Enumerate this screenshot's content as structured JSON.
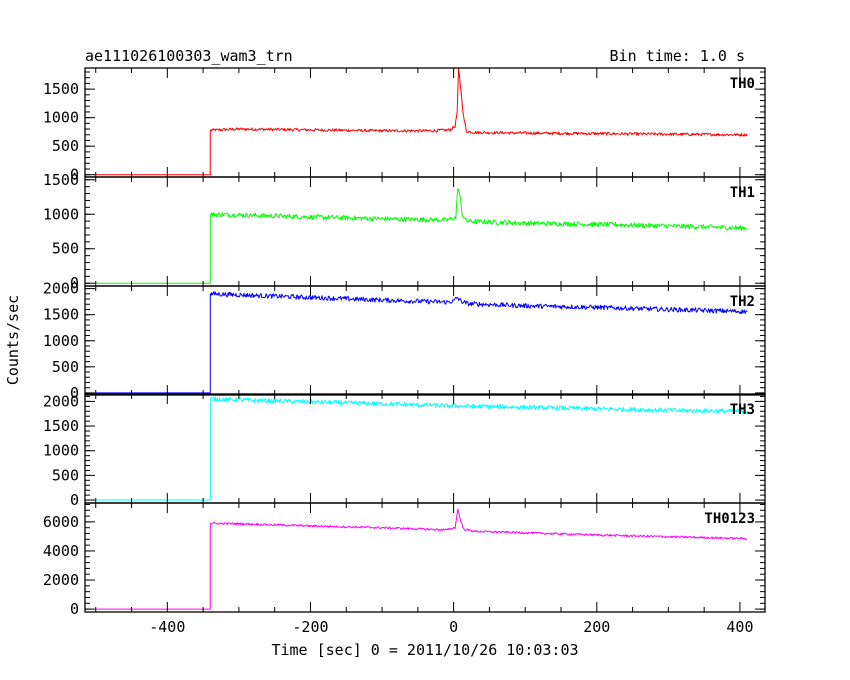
{
  "header": {
    "source": "ae111026100303_wam3_trn",
    "bin_time": "Bin time: 1.0 s"
  },
  "chart_data": {
    "type": "line",
    "title": "ae111026100303_wam3_trn",
    "bin_time": "Bin time: 1.0 s",
    "xlabel": "Time [sec] 0 = 2011/10/26 10:03:03",
    "ylabel": "Counts/sec",
    "xlim": [
      -515,
      435
    ],
    "x_ticks": [
      -400,
      -200,
      0,
      200,
      400
    ],
    "grid": false,
    "panels": [
      {
        "name": "TH0",
        "color": "#ff0000",
        "ylim": [
          -40,
          1870
        ],
        "y_ticks": [
          0,
          500,
          1000,
          1500
        ],
        "noise": 25,
        "points": [
          [
            -500,
            0
          ],
          [
            -340,
            0
          ],
          [
            -340,
            780
          ],
          [
            -300,
            800
          ],
          [
            -200,
            785
          ],
          [
            -100,
            770
          ],
          [
            -30,
            770
          ],
          [
            -5,
            785
          ],
          [
            2,
            850
          ],
          [
            5,
            1100
          ],
          [
            7,
            1850
          ],
          [
            10,
            1500
          ],
          [
            14,
            1000
          ],
          [
            18,
            760
          ],
          [
            30,
            740
          ],
          [
            100,
            730
          ],
          [
            200,
            720
          ],
          [
            300,
            710
          ],
          [
            410,
            700
          ]
        ]
      },
      {
        "name": "TH1",
        "color": "#00ff00",
        "ylim": [
          -40,
          1540
        ],
        "y_ticks": [
          0,
          500,
          1000,
          1500
        ],
        "noise": 35,
        "points": [
          [
            -500,
            0
          ],
          [
            -340,
            0
          ],
          [
            -340,
            1000
          ],
          [
            -300,
            990
          ],
          [
            -200,
            960
          ],
          [
            -100,
            935
          ],
          [
            -10,
            915
          ],
          [
            3,
            950
          ],
          [
            6,
            1400
          ],
          [
            9,
            1250
          ],
          [
            12,
            1000
          ],
          [
            18,
            900
          ],
          [
            100,
            870
          ],
          [
            200,
            855
          ],
          [
            300,
            830
          ],
          [
            410,
            800
          ]
        ]
      },
      {
        "name": "TH2",
        "color": "#0000ff",
        "ylim": [
          -40,
          2050
        ],
        "y_ticks": [
          0,
          500,
          1000,
          1500,
          2000
        ],
        "noise": 45,
        "points": [
          [
            -500,
            0
          ],
          [
            -340,
            0
          ],
          [
            -340,
            1900
          ],
          [
            -300,
            1880
          ],
          [
            -200,
            1830
          ],
          [
            -100,
            1780
          ],
          [
            -10,
            1740
          ],
          [
            0,
            1760
          ],
          [
            5,
            1830
          ],
          [
            10,
            1760
          ],
          [
            20,
            1710
          ],
          [
            100,
            1670
          ],
          [
            200,
            1640
          ],
          [
            300,
            1600
          ],
          [
            410,
            1560
          ]
        ]
      },
      {
        "name": "TH3",
        "color": "#00ffff",
        "ylim": [
          -60,
          2150
        ],
        "y_ticks": [
          0,
          500,
          1000,
          1500,
          2000
        ],
        "noise": 45,
        "points": [
          [
            -500,
            0
          ],
          [
            -340,
            0
          ],
          [
            -340,
            2050
          ],
          [
            -300,
            2030
          ],
          [
            -200,
            1990
          ],
          [
            -100,
            1950
          ],
          [
            0,
            1910
          ],
          [
            100,
            1880
          ],
          [
            200,
            1850
          ],
          [
            300,
            1820
          ],
          [
            410,
            1800
          ]
        ]
      },
      {
        "name": "TH0123",
        "color": "#ff00ff",
        "ylim": [
          -200,
          7300
        ],
        "y_ticks": [
          0,
          2000,
          4000,
          6000
        ],
        "noise": 70,
        "points": [
          [
            -500,
            0
          ],
          [
            -340,
            0
          ],
          [
            -340,
            5900
          ],
          [
            -300,
            5870
          ],
          [
            -200,
            5720
          ],
          [
            -100,
            5600
          ],
          [
            -10,
            5450
          ],
          [
            2,
            5600
          ],
          [
            6,
            6900
          ],
          [
            9,
            6200
          ],
          [
            14,
            5500
          ],
          [
            30,
            5350
          ],
          [
            100,
            5250
          ],
          [
            200,
            5100
          ],
          [
            300,
            4980
          ],
          [
            410,
            4850
          ]
        ]
      }
    ]
  }
}
